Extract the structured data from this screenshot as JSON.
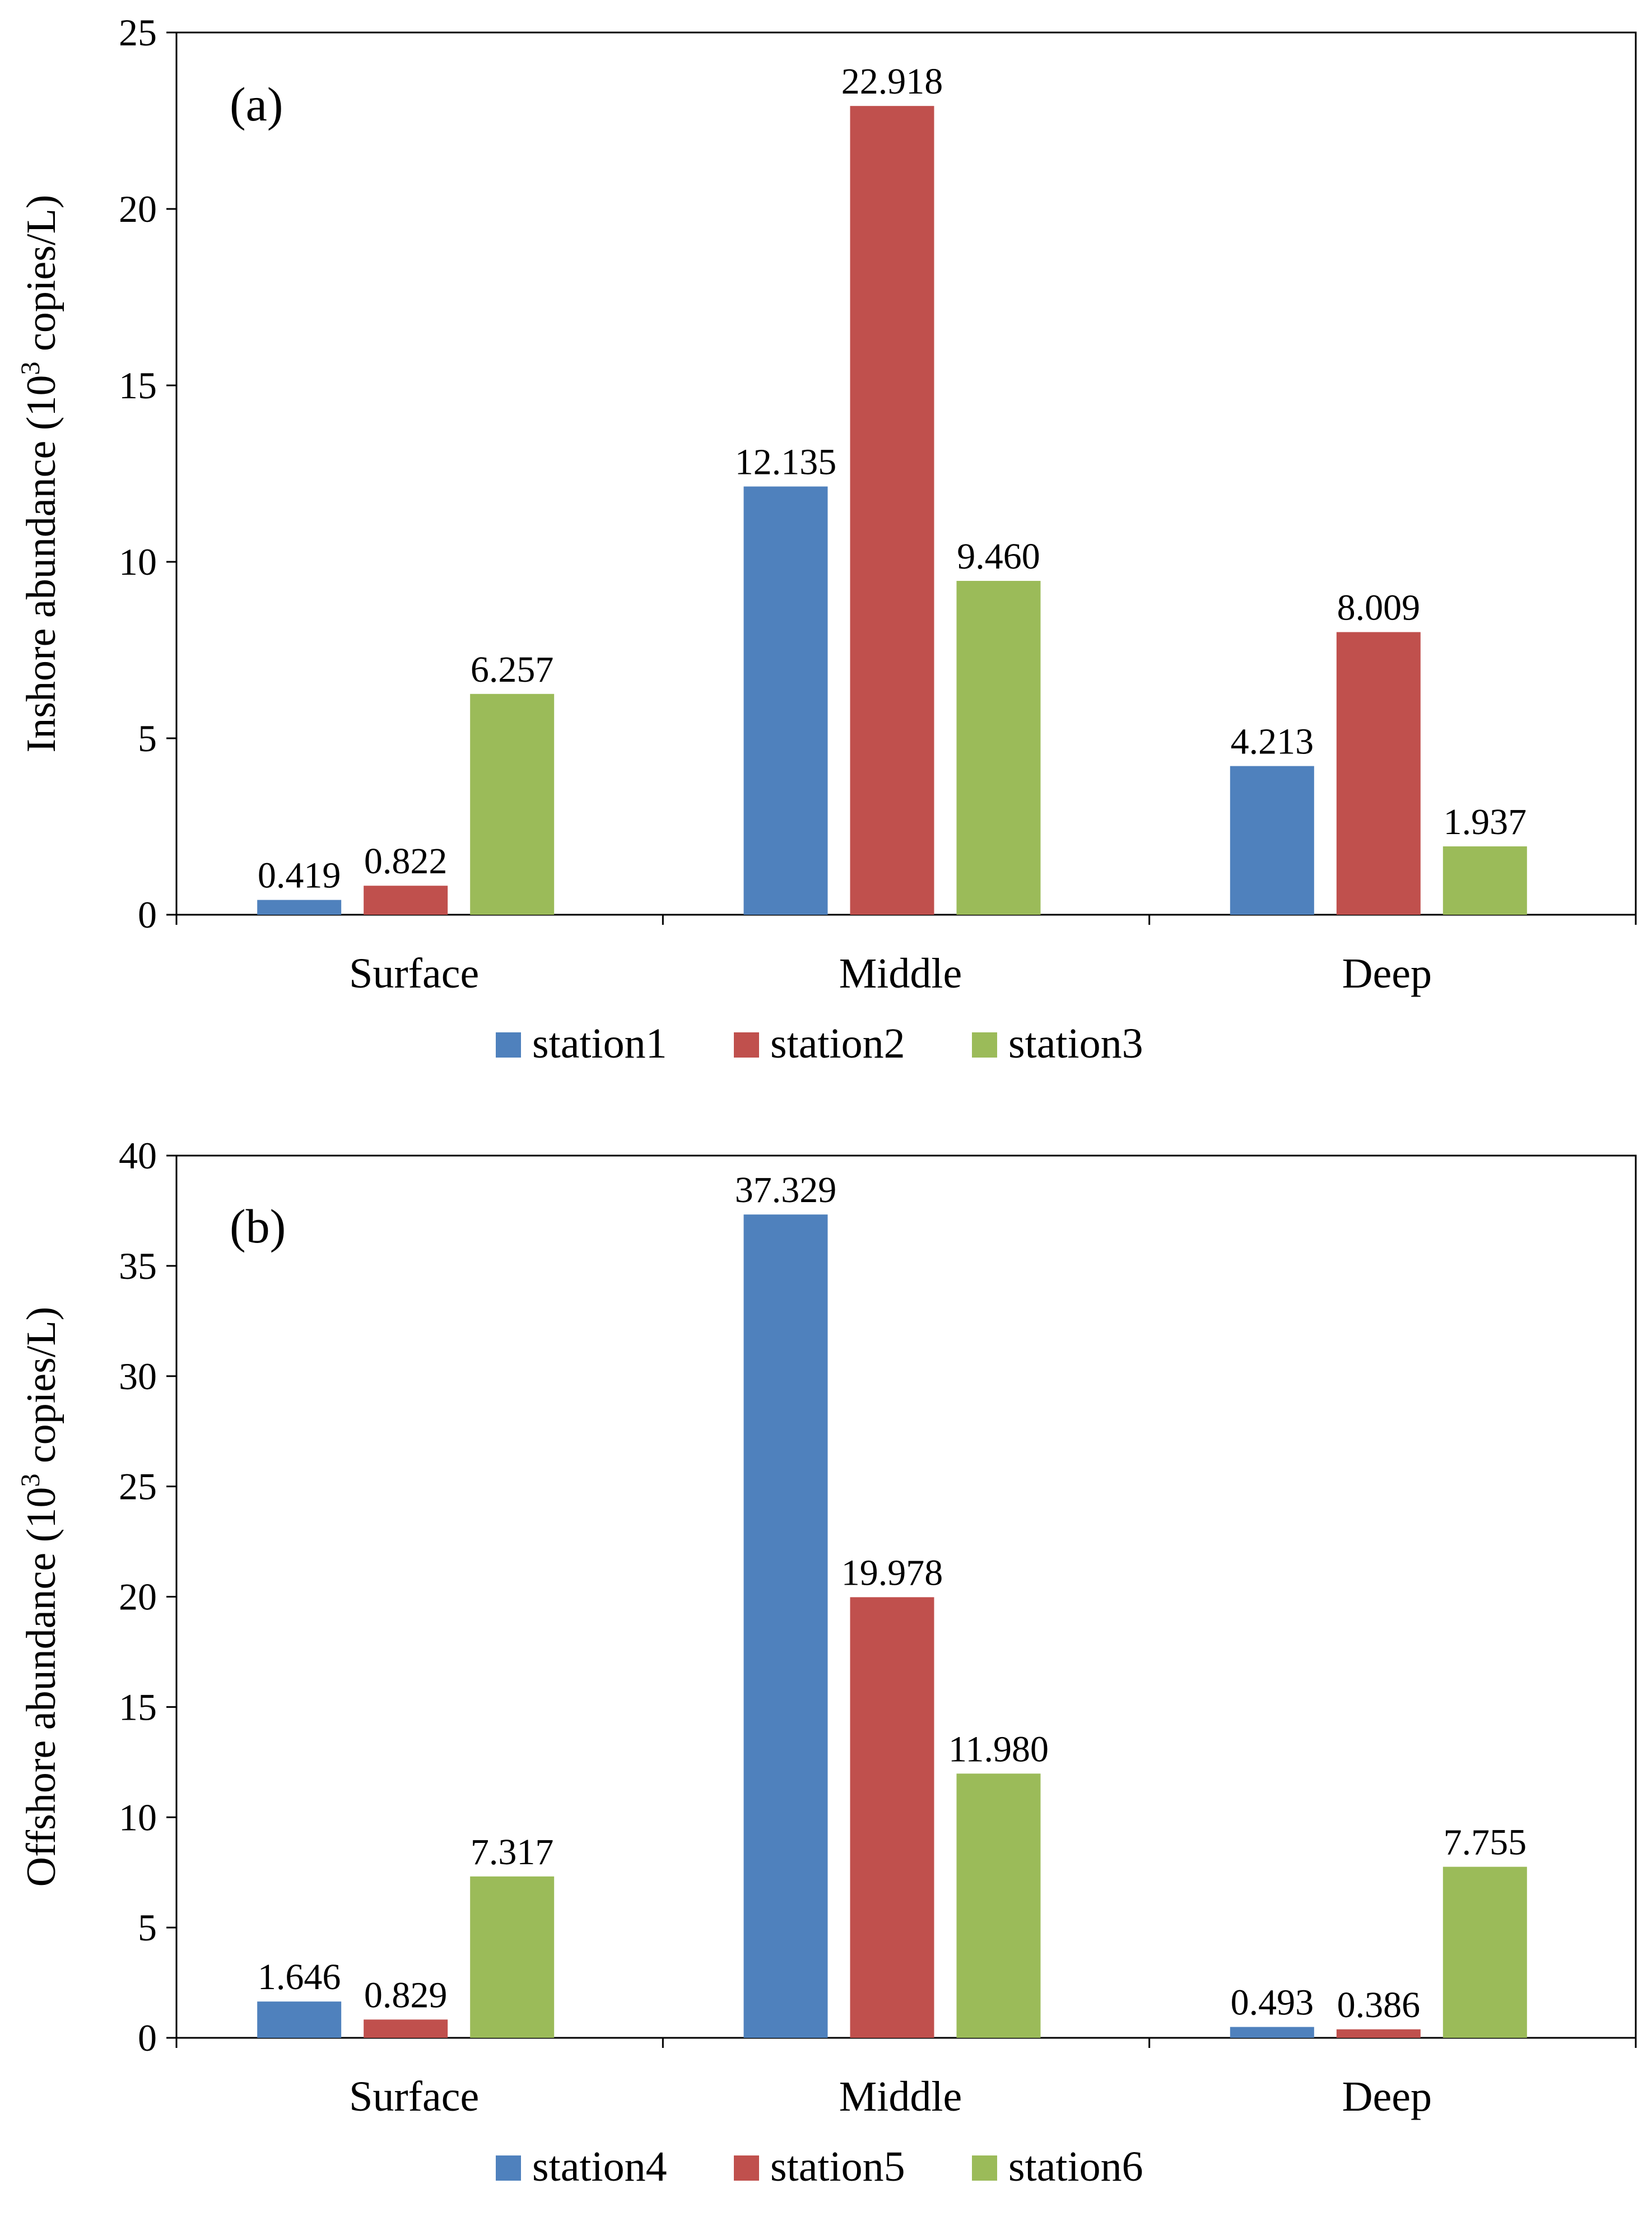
{
  "chart_data": [
    {
      "type": "bar",
      "panel_label": "(a)",
      "title": "",
      "xlabel": "",
      "ylabel_main": "Inshore abundance (10",
      "ylabel_sup": "3",
      "ylabel_tail": " copies/L)",
      "ylim": [
        0,
        25
      ],
      "yticks": [
        0,
        5,
        10,
        15,
        20,
        25
      ],
      "categories": [
        "Surface",
        "Middle",
        "Deep"
      ],
      "series": [
        {
          "name": "station1",
          "color": "#4f81bd",
          "values": [
            0.419,
            12.135,
            4.213
          ],
          "labels": [
            "0.419",
            "12.135",
            "4.213"
          ]
        },
        {
          "name": "station2",
          "color": "#c0504d",
          "values": [
            0.822,
            22.918,
            8.009
          ],
          "labels": [
            "0.822",
            "22.918",
            "8.009"
          ]
        },
        {
          "name": "station3",
          "color": "#9bbb59",
          "values": [
            6.257,
            9.46,
            1.937
          ],
          "labels": [
            "6.257",
            "9.460",
            "1.937"
          ]
        }
      ],
      "legend_position": "bottom",
      "grid": false
    },
    {
      "type": "bar",
      "panel_label": "(b)",
      "title": "",
      "xlabel": "",
      "ylabel_main": "Offshore abundance (10",
      "ylabel_sup": "3",
      "ylabel_tail": " copies/L)",
      "ylim": [
        0,
        40
      ],
      "yticks": [
        0,
        5,
        10,
        15,
        20,
        25,
        30,
        35,
        40
      ],
      "categories": [
        "Surface",
        "Middle",
        "Deep"
      ],
      "series": [
        {
          "name": "station4",
          "color": "#4f81bd",
          "values": [
            1.646,
            37.329,
            0.493
          ],
          "labels": [
            "1.646",
            "37.329",
            "0.493"
          ]
        },
        {
          "name": "station5",
          "color": "#c0504d",
          "values": [
            0.829,
            19.978,
            0.386
          ],
          "labels": [
            "0.829",
            "19.978",
            "0.386"
          ]
        },
        {
          "name": "station6",
          "color": "#9bbb59",
          "values": [
            7.317,
            11.98,
            7.755
          ],
          "labels": [
            "7.317",
            "11.980",
            "7.755"
          ]
        }
      ],
      "legend_position": "bottom",
      "grid": false
    }
  ]
}
